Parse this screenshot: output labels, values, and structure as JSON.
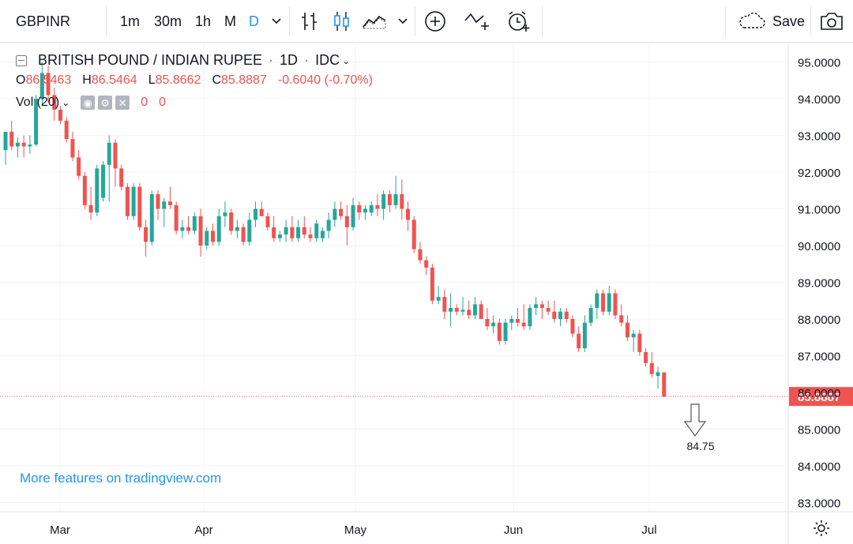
{
  "toolbar": {
    "symbol": "GBPINR",
    "intervals": [
      "1m",
      "30m",
      "1h",
      "M",
      "D"
    ],
    "active_interval": "D",
    "save_label": "Save"
  },
  "legend": {
    "title": "BRITISH POUND / INDIAN RUPEE",
    "interval": "1D",
    "source": "IDC",
    "open_key": "O",
    "open": "86.5463",
    "high_key": "H",
    "high": "86.5464",
    "low_key": "L",
    "low": "85.8662",
    "close_key": "C",
    "close": "85.8887",
    "change": "-0.6040 (-0.70%)",
    "vol_label": "Vol (20)",
    "vol_values": [
      "0",
      "0"
    ]
  },
  "promo_text": "More features on tradingview.com",
  "colors": {
    "up": "#26a69a",
    "down": "#ef5350",
    "grid": "#f0f3fa",
    "axis_text": "#131722",
    "accent": "#2196f3",
    "price_line": "#ef5350"
  },
  "chart_data": {
    "type": "candlestick",
    "y_axis_labels": [
      "95.0000",
      "94.0000",
      "93.0000",
      "92.0000",
      "91.0000",
      "90.0000",
      "89.0000",
      "88.0000",
      "87.0000",
      "86.0000",
      "85.0000",
      "84.0000",
      "83.0000"
    ],
    "ylim": [
      82.7,
      95.3
    ],
    "x_axis_labels": [
      "Mar",
      "Apr",
      "May",
      "Jun",
      "Jul"
    ],
    "last_price_label": "85.8887",
    "last_price": 85.8887,
    "annotation": {
      "text": "84.75",
      "value": 84.75
    },
    "candles": [
      {
        "o": 92.6,
        "h": 93.1,
        "l": 92.2,
        "c": 93.1
      },
      {
        "o": 93.1,
        "h": 93.4,
        "l": 92.6,
        "c": 92.7
      },
      {
        "o": 92.7,
        "h": 92.95,
        "l": 92.4,
        "c": 92.8
      },
      {
        "o": 92.8,
        "h": 93.0,
        "l": 92.4,
        "c": 92.7
      },
      {
        "o": 92.7,
        "h": 93.0,
        "l": 92.5,
        "c": 92.75
      },
      {
        "o": 92.75,
        "h": 94.1,
        "l": 92.7,
        "c": 94.0
      },
      {
        "o": 94.0,
        "h": 95.0,
        "l": 93.8,
        "c": 94.7
      },
      {
        "o": 94.7,
        "h": 94.9,
        "l": 93.9,
        "c": 94.1
      },
      {
        "o": 94.1,
        "h": 94.3,
        "l": 93.4,
        "c": 93.7
      },
      {
        "o": 93.7,
        "h": 93.8,
        "l": 93.3,
        "c": 93.4
      },
      {
        "o": 93.4,
        "h": 93.5,
        "l": 92.8,
        "c": 92.9
      },
      {
        "o": 92.9,
        "h": 93.1,
        "l": 92.3,
        "c": 92.4
      },
      {
        "o": 92.4,
        "h": 92.6,
        "l": 91.8,
        "c": 91.9
      },
      {
        "o": 91.9,
        "h": 92.0,
        "l": 91.0,
        "c": 91.1
      },
      {
        "o": 91.1,
        "h": 91.6,
        "l": 90.7,
        "c": 90.9
      },
      {
        "o": 90.9,
        "h": 92.2,
        "l": 90.8,
        "c": 92.1
      },
      {
        "o": 91.3,
        "h": 92.3,
        "l": 91.2,
        "c": 92.2
      },
      {
        "o": 92.2,
        "h": 93.0,
        "l": 91.2,
        "c": 92.8
      },
      {
        "o": 92.8,
        "h": 92.9,
        "l": 91.6,
        "c": 92.1
      },
      {
        "o": 92.1,
        "h": 92.2,
        "l": 91.5,
        "c": 91.6
      },
      {
        "o": 91.6,
        "h": 91.7,
        "l": 90.7,
        "c": 90.8
      },
      {
        "o": 90.8,
        "h": 91.7,
        "l": 90.7,
        "c": 91.6
      },
      {
        "o": 91.6,
        "h": 91.7,
        "l": 90.4,
        "c": 90.5
      },
      {
        "o": 90.5,
        "h": 90.7,
        "l": 89.7,
        "c": 90.1
      },
      {
        "o": 90.1,
        "h": 91.5,
        "l": 90.0,
        "c": 91.4
      },
      {
        "o": 91.4,
        "h": 91.5,
        "l": 90.7,
        "c": 91.0
      },
      {
        "o": 91.0,
        "h": 91.3,
        "l": 90.5,
        "c": 91.2
      },
      {
        "o": 91.2,
        "h": 91.6,
        "l": 91.0,
        "c": 91.1
      },
      {
        "o": 91.1,
        "h": 91.2,
        "l": 90.3,
        "c": 90.4
      },
      {
        "o": 90.4,
        "h": 90.7,
        "l": 90.2,
        "c": 90.5
      },
      {
        "o": 90.5,
        "h": 90.8,
        "l": 90.3,
        "c": 90.4
      },
      {
        "o": 90.4,
        "h": 90.9,
        "l": 90.3,
        "c": 90.8
      },
      {
        "o": 90.8,
        "h": 91.0,
        "l": 89.7,
        "c": 90.0
      },
      {
        "o": 90.0,
        "h": 90.5,
        "l": 89.9,
        "c": 90.4
      },
      {
        "o": 90.4,
        "h": 90.6,
        "l": 90.0,
        "c": 90.1
      },
      {
        "o": 90.1,
        "h": 91.0,
        "l": 90.0,
        "c": 90.8
      },
      {
        "o": 90.8,
        "h": 91.2,
        "l": 90.5,
        "c": 90.9
      },
      {
        "o": 90.9,
        "h": 91.0,
        "l": 90.3,
        "c": 90.4
      },
      {
        "o": 90.4,
        "h": 90.7,
        "l": 90.2,
        "c": 90.5
      },
      {
        "o": 90.5,
        "h": 90.6,
        "l": 90.0,
        "c": 90.1
      },
      {
        "o": 90.1,
        "h": 90.9,
        "l": 90.0,
        "c": 90.7
      },
      {
        "o": 90.7,
        "h": 91.2,
        "l": 90.5,
        "c": 91.0
      },
      {
        "o": 91.0,
        "h": 91.2,
        "l": 90.8,
        "c": 90.8
      },
      {
        "o": 90.8,
        "h": 90.9,
        "l": 90.4,
        "c": 90.5
      },
      {
        "o": 90.5,
        "h": 90.8,
        "l": 90.1,
        "c": 90.2
      },
      {
        "o": 90.2,
        "h": 90.4,
        "l": 90.1,
        "c": 90.3
      },
      {
        "o": 90.3,
        "h": 90.7,
        "l": 90.1,
        "c": 90.5
      },
      {
        "o": 90.5,
        "h": 90.8,
        "l": 90.1,
        "c": 90.2
      },
      {
        "o": 90.2,
        "h": 90.7,
        "l": 90.1,
        "c": 90.5
      },
      {
        "o": 90.5,
        "h": 90.8,
        "l": 90.2,
        "c": 90.3
      },
      {
        "o": 90.3,
        "h": 90.5,
        "l": 90.1,
        "c": 90.2
      },
      {
        "o": 90.2,
        "h": 90.7,
        "l": 90.1,
        "c": 90.6
      },
      {
        "o": 90.2,
        "h": 90.5,
        "l": 90.1,
        "c": 90.4
      },
      {
        "o": 90.4,
        "h": 90.9,
        "l": 90.2,
        "c": 90.7
      },
      {
        "o": 90.7,
        "h": 91.2,
        "l": 90.5,
        "c": 91.0
      },
      {
        "o": 91.0,
        "h": 91.2,
        "l": 90.7,
        "c": 90.8
      },
      {
        "o": 90.8,
        "h": 91.1,
        "l": 90.0,
        "c": 90.5
      },
      {
        "o": 90.5,
        "h": 91.3,
        "l": 90.4,
        "c": 91.1
      },
      {
        "o": 91.1,
        "h": 91.2,
        "l": 90.7,
        "c": 90.9
      },
      {
        "o": 90.9,
        "h": 91.1,
        "l": 90.7,
        "c": 91.0
      },
      {
        "o": 90.9,
        "h": 91.2,
        "l": 90.8,
        "c": 91.1
      },
      {
        "o": 91.1,
        "h": 91.4,
        "l": 90.8,
        "c": 91.0
      },
      {
        "o": 91.0,
        "h": 91.5,
        "l": 90.7,
        "c": 91.4
      },
      {
        "o": 91.4,
        "h": 91.5,
        "l": 90.9,
        "c": 91.1
      },
      {
        "o": 91.1,
        "h": 91.9,
        "l": 91.0,
        "c": 91.4
      },
      {
        "o": 91.4,
        "h": 91.8,
        "l": 90.7,
        "c": 91.0
      },
      {
        "o": 91.0,
        "h": 91.2,
        "l": 90.4,
        "c": 90.7
      },
      {
        "o": 90.7,
        "h": 90.8,
        "l": 89.8,
        "c": 89.9
      },
      {
        "o": 89.9,
        "h": 90.1,
        "l": 89.5,
        "c": 89.6
      },
      {
        "o": 89.6,
        "h": 89.7,
        "l": 89.2,
        "c": 89.4
      },
      {
        "o": 89.4,
        "h": 89.5,
        "l": 88.4,
        "c": 88.5
      },
      {
        "o": 88.5,
        "h": 88.9,
        "l": 88.4,
        "c": 88.6
      },
      {
        "o": 88.6,
        "h": 88.8,
        "l": 88.0,
        "c": 88.2
      },
      {
        "o": 88.2,
        "h": 88.7,
        "l": 87.8,
        "c": 88.3
      },
      {
        "o": 88.3,
        "h": 88.4,
        "l": 88.1,
        "c": 88.2
      },
      {
        "o": 88.2,
        "h": 88.6,
        "l": 88.1,
        "c": 88.25
      },
      {
        "o": 88.25,
        "h": 88.5,
        "l": 88.0,
        "c": 88.1
      },
      {
        "o": 88.1,
        "h": 88.6,
        "l": 88.0,
        "c": 88.4
      },
      {
        "o": 88.4,
        "h": 88.5,
        "l": 88.0,
        "c": 88.0
      },
      {
        "o": 88.0,
        "h": 88.3,
        "l": 87.7,
        "c": 87.8
      },
      {
        "o": 87.8,
        "h": 88.1,
        "l": 87.6,
        "c": 87.9
      },
      {
        "o": 87.9,
        "h": 88.0,
        "l": 87.3,
        "c": 87.4
      },
      {
        "o": 87.4,
        "h": 88.0,
        "l": 87.3,
        "c": 87.9
      },
      {
        "o": 87.9,
        "h": 88.1,
        "l": 87.7,
        "c": 88.0
      },
      {
        "o": 88.0,
        "h": 88.3,
        "l": 87.8,
        "c": 87.9
      },
      {
        "o": 87.9,
        "h": 88.4,
        "l": 87.7,
        "c": 87.8
      },
      {
        "o": 87.8,
        "h": 88.4,
        "l": 87.7,
        "c": 88.3
      },
      {
        "o": 88.3,
        "h": 88.6,
        "l": 88.1,
        "c": 88.4
      },
      {
        "o": 88.4,
        "h": 88.5,
        "l": 88.0,
        "c": 88.3
      },
      {
        "o": 88.3,
        "h": 88.5,
        "l": 88.1,
        "c": 88.2
      },
      {
        "o": 88.2,
        "h": 88.5,
        "l": 87.9,
        "c": 88.0
      },
      {
        "o": 88.0,
        "h": 88.3,
        "l": 87.8,
        "c": 88.2
      },
      {
        "o": 88.2,
        "h": 88.3,
        "l": 87.9,
        "c": 88.0
      },
      {
        "o": 88.0,
        "h": 88.1,
        "l": 87.5,
        "c": 87.6
      },
      {
        "o": 87.6,
        "h": 87.8,
        "l": 87.1,
        "c": 87.2
      },
      {
        "o": 87.2,
        "h": 88.1,
        "l": 87.1,
        "c": 87.9
      },
      {
        "o": 87.9,
        "h": 88.4,
        "l": 87.8,
        "c": 88.3
      },
      {
        "o": 88.3,
        "h": 88.8,
        "l": 88.0,
        "c": 88.7
      },
      {
        "o": 88.7,
        "h": 88.8,
        "l": 88.1,
        "c": 88.2
      },
      {
        "o": 88.2,
        "h": 88.9,
        "l": 88.1,
        "c": 88.7
      },
      {
        "o": 88.7,
        "h": 88.8,
        "l": 88.0,
        "c": 88.1
      },
      {
        "o": 88.1,
        "h": 88.4,
        "l": 87.8,
        "c": 87.9
      },
      {
        "o": 87.9,
        "h": 88.1,
        "l": 87.4,
        "c": 87.5
      },
      {
        "o": 87.5,
        "h": 87.7,
        "l": 87.1,
        "c": 87.6
      },
      {
        "o": 87.6,
        "h": 87.7,
        "l": 87.0,
        "c": 87.1
      },
      {
        "o": 87.1,
        "h": 87.2,
        "l": 86.7,
        "c": 86.8
      },
      {
        "o": 86.8,
        "h": 87.1,
        "l": 86.4,
        "c": 86.5
      },
      {
        "o": 86.45,
        "h": 86.7,
        "l": 86.1,
        "c": 86.55
      },
      {
        "o": 86.5463,
        "h": 86.5464,
        "l": 85.8662,
        "c": 85.8887
      }
    ]
  }
}
